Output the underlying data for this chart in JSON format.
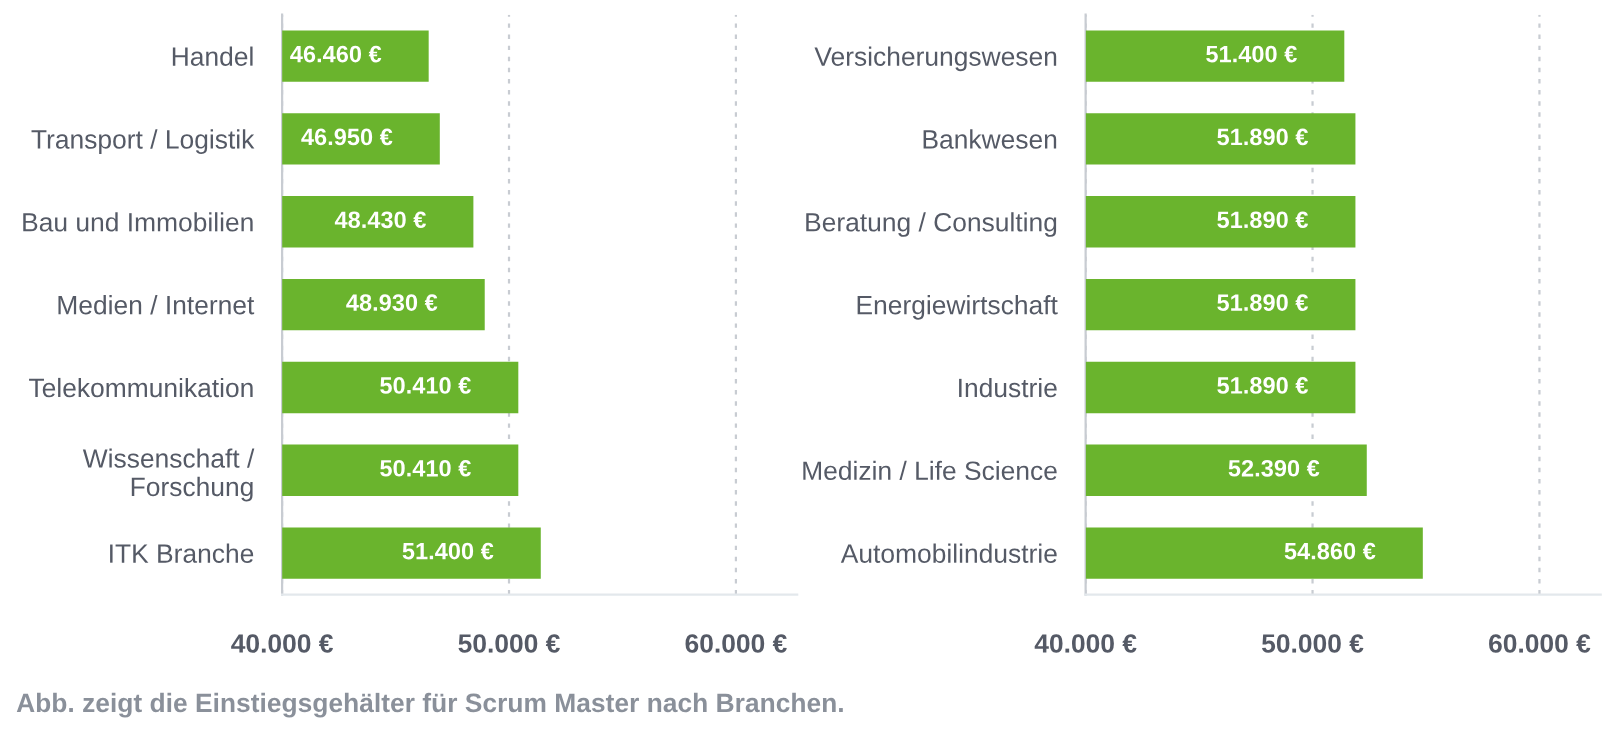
{
  "chart_data": [
    {
      "type": "bar",
      "orientation": "horizontal",
      "categories": [
        "Handel",
        "Transport / Logistik",
        "Bau und Immobilien",
        "Medien / Internet",
        "Telekommunikation",
        "Wissenschaft /\nForschung",
        "ITK Branche"
      ],
      "values": [
        46460,
        46950,
        48430,
        48930,
        50410,
        50410,
        51400
      ],
      "value_labels": [
        "46.460 €",
        "46.950 €",
        "48.430 €",
        "48.930 €",
        "50.410 €",
        "50.410 €",
        "51.400 €"
      ],
      "color": "#6ab42d",
      "xlim": [
        40000,
        62700
      ],
      "xticks": [
        {
          "value": 40000,
          "label": "40.000 €"
        },
        {
          "value": 50000,
          "label": "50.000 €"
        },
        {
          "value": 60000,
          "label": "60.000 €"
        }
      ],
      "grid": "x",
      "annotations": [
        "Abb. zeigt die Einstiegsgehälter für Scrum Master nach Branchen."
      ]
    },
    {
      "type": "bar",
      "orientation": "horizontal",
      "categories": [
        "Versicherungswesen",
        "Bankwesen",
        "Beratung / Consulting",
        "Energiewirtschaft",
        "Industrie",
        "Medizin / Life Science",
        "Automobilindustrie"
      ],
      "values": [
        51400,
        51890,
        51890,
        51890,
        51890,
        52390,
        54860
      ],
      "value_labels": [
        "51.400 €",
        "51.890 €",
        "51.890 €",
        "51.890 €",
        "51.890 €",
        "52.390 €",
        "54.860 €"
      ],
      "color": "#6ab42d",
      "xlim": [
        40000,
        62700
      ],
      "xticks": [
        {
          "value": 40000,
          "label": "40.000 €"
        },
        {
          "value": 50000,
          "label": "50.000 €"
        },
        {
          "value": 60000,
          "label": "60.000 €"
        }
      ],
      "grid": "x"
    }
  ]
}
